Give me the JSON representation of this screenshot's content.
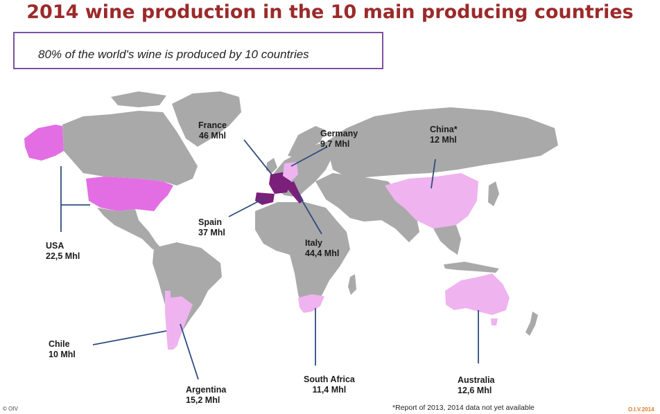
{
  "title": "2014 wine production in the 10 main producing countries",
  "subtitle": "80% of the world's wine is produced by 10 countries",
  "colors": {
    "land": "#a9a9a9",
    "dark_purple": "#7a1f7a",
    "magenta": "#e36ee3",
    "light_pink": "#efb3ef",
    "leader": "#2e4c7e",
    "title": "#9b2a2a",
    "box_border": "#7b52a0"
  },
  "countries": [
    {
      "name": "France",
      "value": "46 Mhl",
      "shade": "dark_purple"
    },
    {
      "name": "Germany",
      "value": "9,7 Mhl",
      "shade": "light_pink"
    },
    {
      "name": "China*",
      "value": "12 Mhl",
      "shade": "light_pink"
    },
    {
      "name": "USA",
      "value": "22,5 Mhl",
      "shade": "magenta"
    },
    {
      "name": "Spain",
      "value": "37 Mhl",
      "shade": "dark_purple"
    },
    {
      "name": "Italy",
      "value": "44,4 Mhl",
      "shade": "dark_purple"
    },
    {
      "name": "Chile",
      "value": "10 Mhl",
      "shade": "light_pink"
    },
    {
      "name": "South Africa",
      "value": "11,4 Mhl",
      "shade": "light_pink"
    },
    {
      "name": "Australia",
      "value": "12,6 Mhl",
      "shade": "light_pink"
    },
    {
      "name": "Argentina",
      "value": "15,2 Mhl",
      "shade": "light_pink"
    }
  ],
  "footer": {
    "copyright": "© OIV",
    "note": "*Report of 2013, 2014 data not yet available",
    "brand": "O.I.V.2014"
  }
}
